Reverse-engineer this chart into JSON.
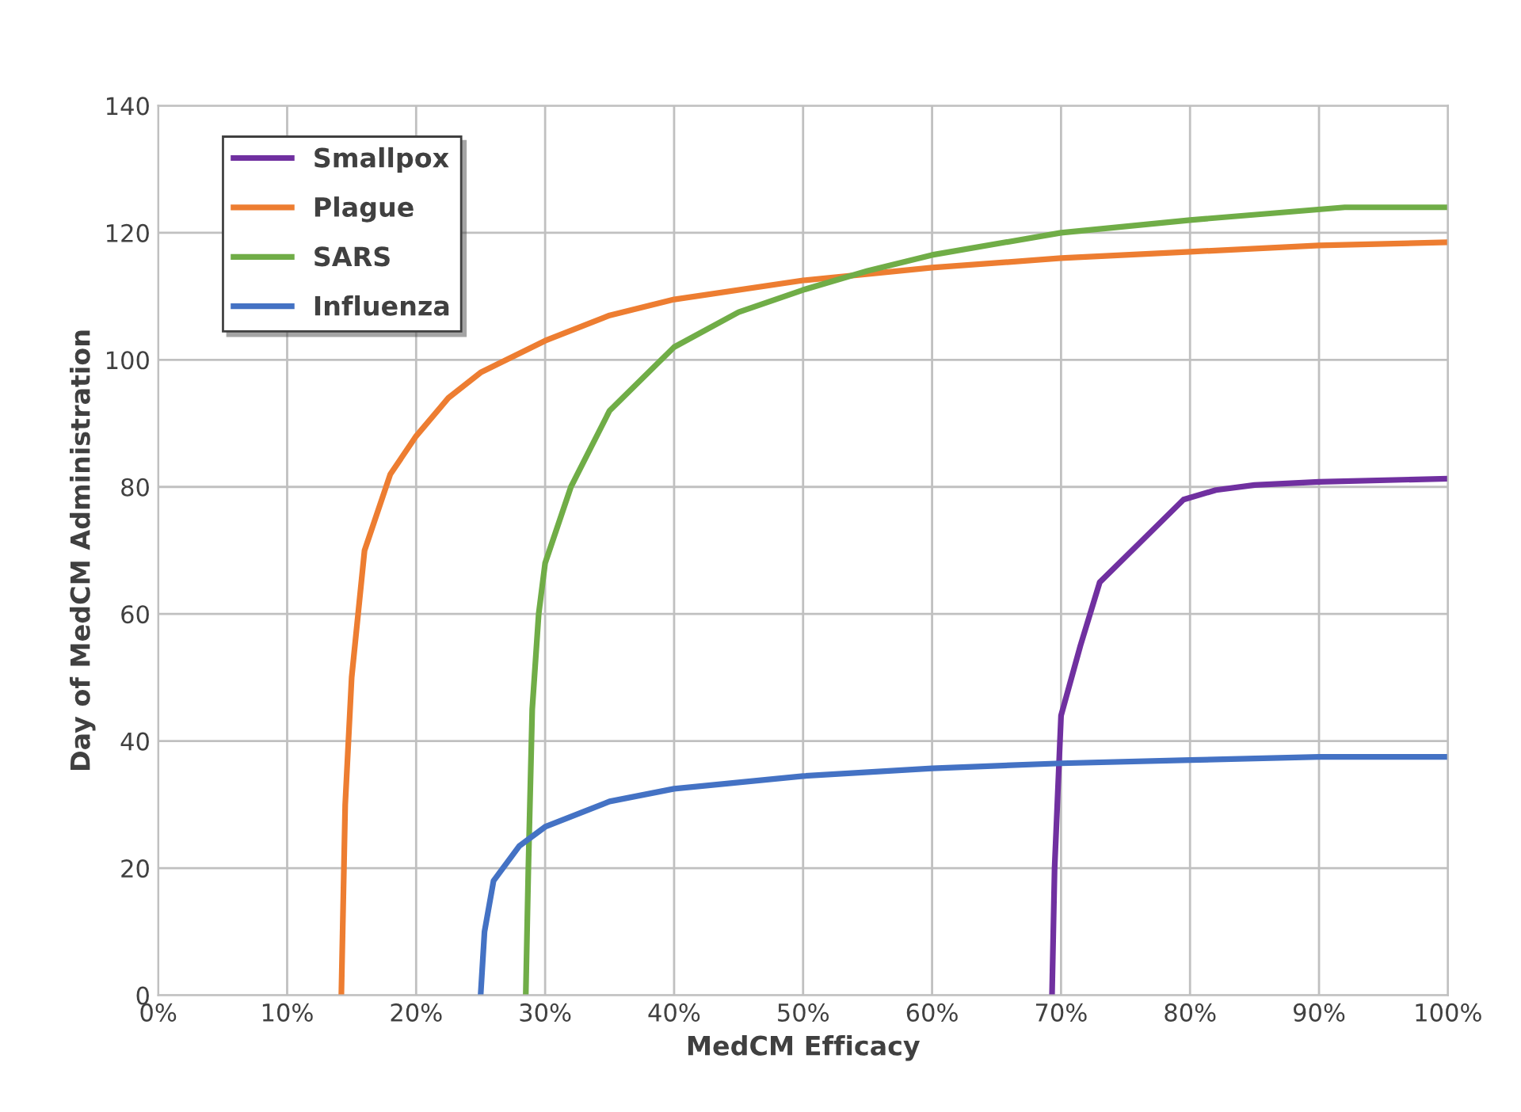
{
  "chart_data": {
    "type": "line",
    "xlabel": "MedCM Efficacy",
    "ylabel": "Day of MedCM Administration",
    "xlim": [
      0,
      100
    ],
    "ylim": [
      0,
      140
    ],
    "xticks": [
      {
        "value": 0,
        "label": "0%"
      },
      {
        "value": 10,
        "label": "10%"
      },
      {
        "value": 20,
        "label": "20%"
      },
      {
        "value": 30,
        "label": "30%"
      },
      {
        "value": 40,
        "label": "40%"
      },
      {
        "value": 50,
        "label": "50%"
      },
      {
        "value": 60,
        "label": "60%"
      },
      {
        "value": 70,
        "label": "70%"
      },
      {
        "value": 80,
        "label": "80%"
      },
      {
        "value": 90,
        "label": "90%"
      },
      {
        "value": 100,
        "label": "100%"
      }
    ],
    "yticks": [
      0,
      20,
      40,
      60,
      80,
      100,
      120,
      140
    ],
    "grid": true,
    "legend": "top left",
    "marker": "none",
    "line_style": "solid",
    "series": [
      {
        "name": "Smallpox",
        "color": "#7030a0",
        "x": [
          69.3,
          69.5,
          70,
          71.5,
          73,
          76,
          79.5,
          82,
          85,
          90,
          100
        ],
        "values": [
          0,
          20,
          44,
          55,
          65,
          71,
          78,
          79.5,
          80.3,
          80.8,
          81.3
        ]
      },
      {
        "name": "Plague",
        "color": "#ed7d31",
        "x": [
          14.2,
          14.5,
          15,
          16,
          18,
          20,
          22.5,
          25,
          30,
          35,
          40,
          50,
          60,
          70,
          80,
          90,
          100
        ],
        "values": [
          0,
          30,
          50,
          70,
          82,
          88,
          94,
          98,
          103,
          107,
          109.5,
          112.5,
          114.5,
          116,
          117,
          118,
          118.5
        ]
      },
      {
        "name": "SARS",
        "color": "#70ad47",
        "x": [
          28.5,
          28.7,
          29,
          29.5,
          30,
          32,
          35,
          40,
          45,
          50,
          55,
          60,
          70,
          80,
          92,
          100
        ],
        "values": [
          0,
          20,
          45,
          60,
          68,
          80,
          92,
          102,
          107.5,
          111,
          114,
          116.5,
          120,
          122,
          124,
          124
        ]
      },
      {
        "name": "Influenza",
        "color": "#4472c4",
        "x": [
          25,
          25.3,
          26,
          28,
          30,
          35,
          40,
          50,
          60,
          70,
          80,
          90,
          100
        ],
        "values": [
          0,
          10,
          18,
          23.5,
          26.5,
          30.5,
          32.5,
          34.5,
          35.7,
          36.5,
          37,
          37.5,
          37.5
        ]
      }
    ]
  }
}
